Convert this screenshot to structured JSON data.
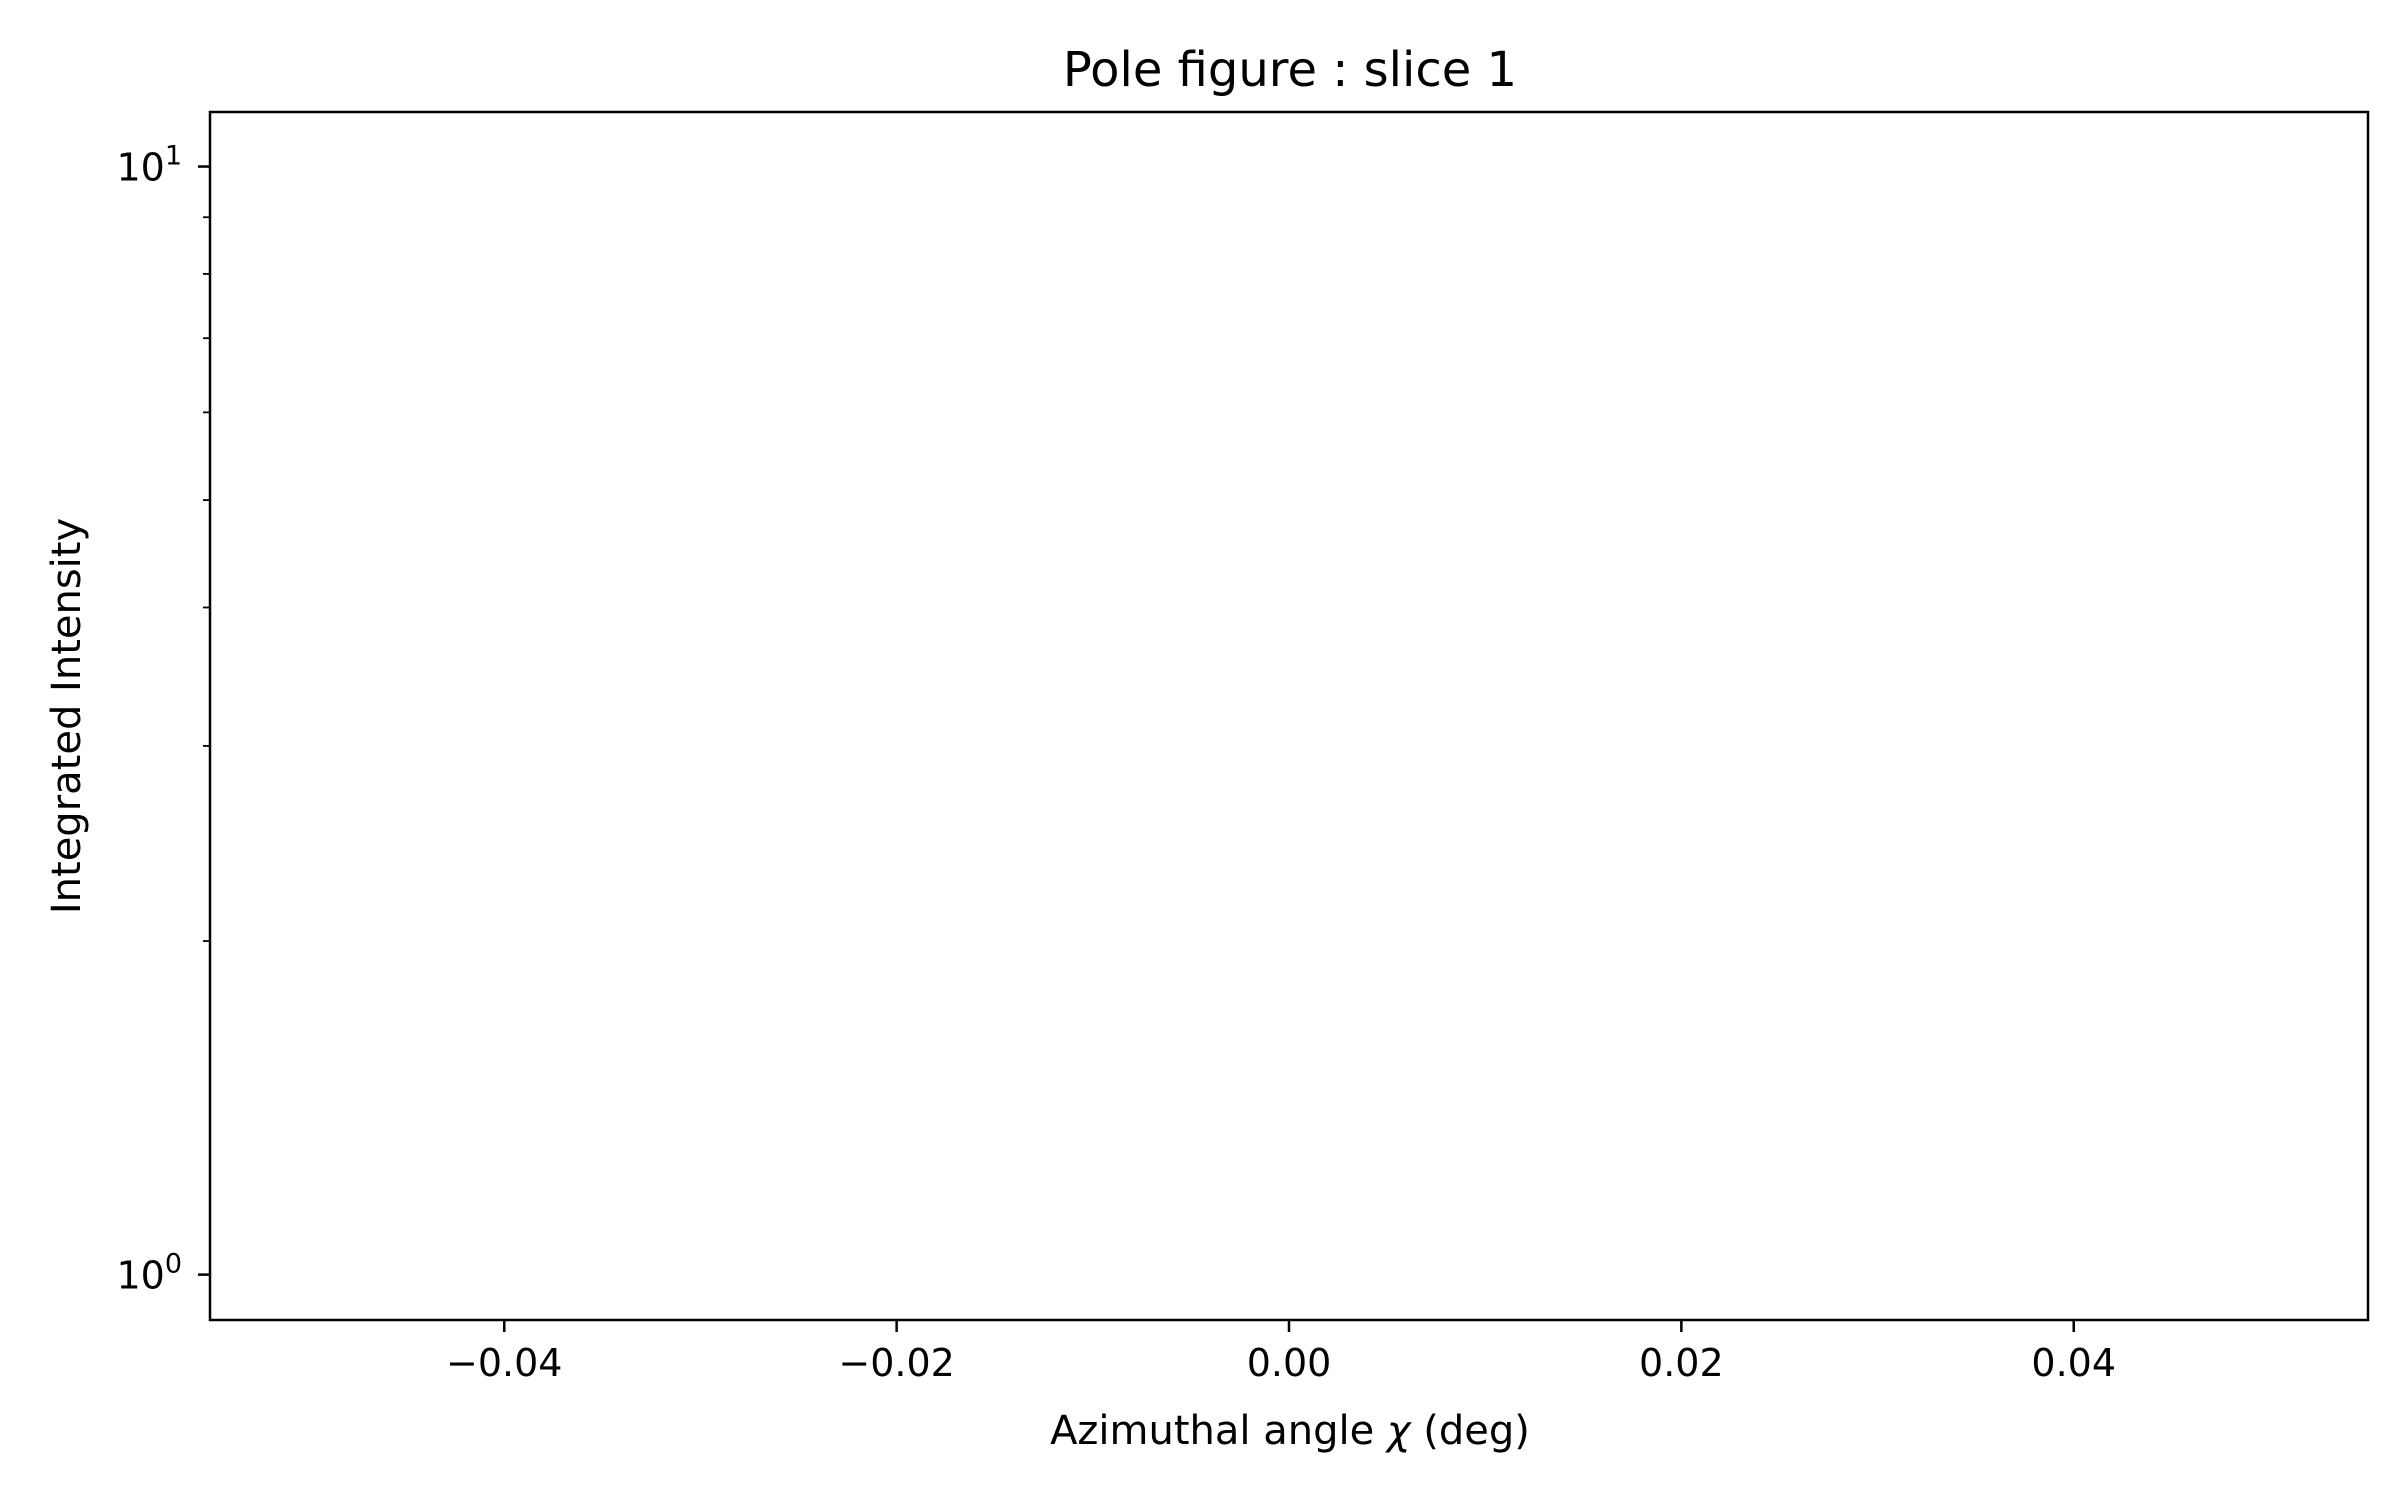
{
  "chart_data": {
    "type": "line",
    "title": "Pole figure : slice 1",
    "xlabel_text": "Azimuthal angle ",
    "xlabel_symbol": "χ",
    "xlabel_unit": " (deg)",
    "ylabel": "Integrated Intensity",
    "xlim": [
      -0.055,
      0.055
    ],
    "ylim": [
      0.91,
      11.2
    ],
    "yscale": "log",
    "grid": false,
    "x_ticks": [
      {
        "value": -0.04,
        "label": "−0.04"
      },
      {
        "value": -0.02,
        "label": "−0.02"
      },
      {
        "value": 0.0,
        "label": "0.00"
      },
      {
        "value": 0.02,
        "label": "0.02"
      },
      {
        "value": 0.04,
        "label": "0.04"
      }
    ],
    "y_major_ticks": [
      {
        "value": 1,
        "base": "10",
        "exponent": "0"
      },
      {
        "value": 10,
        "base": "10",
        "exponent": "1"
      }
    ],
    "y_minor_ticks": [
      2,
      3,
      4,
      5,
      6,
      7,
      8,
      9
    ],
    "series": [
      {
        "x": [],
        "y": []
      }
    ],
    "colors": {
      "axes": "#000000",
      "background": "#ffffff"
    }
  }
}
